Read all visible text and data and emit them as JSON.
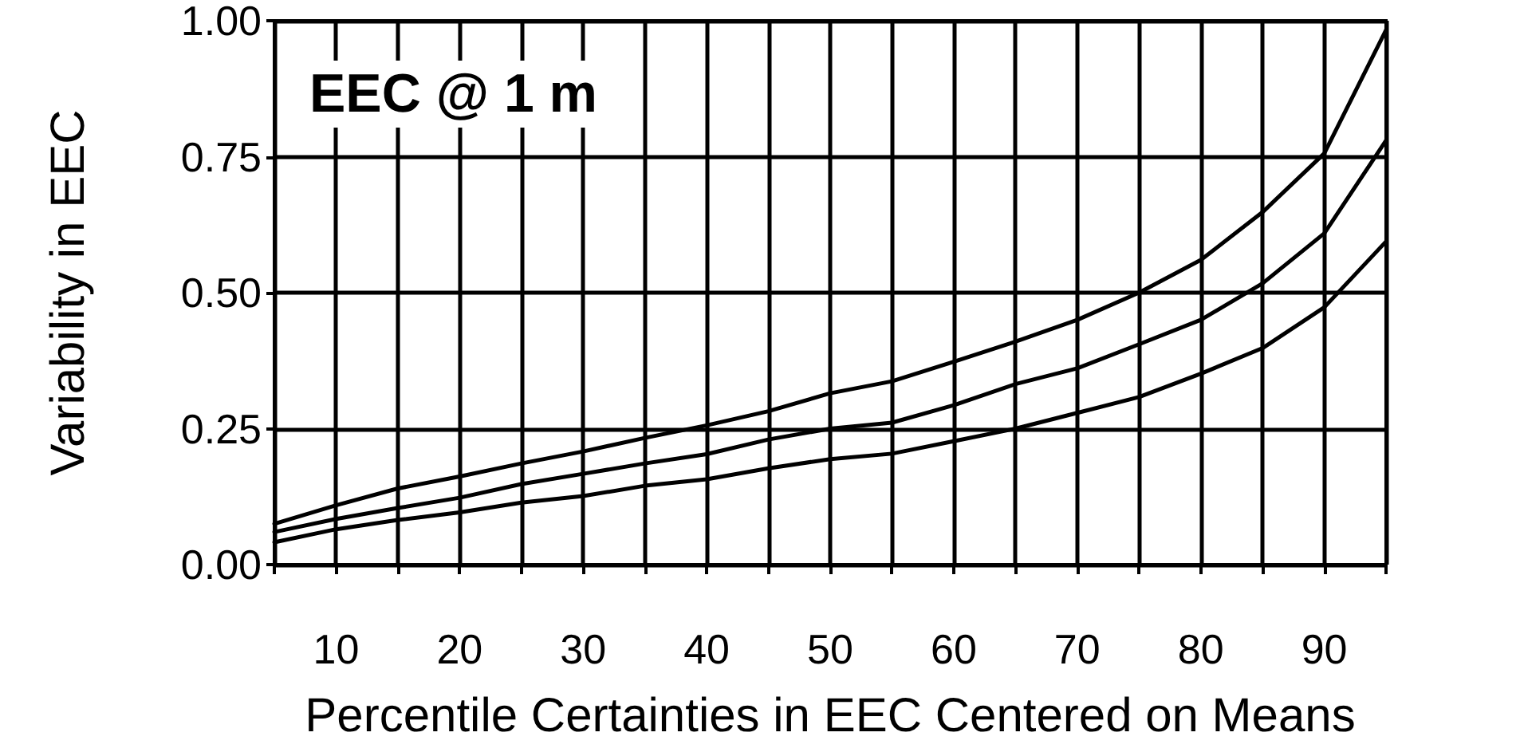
{
  "chart_data": {
    "type": "line",
    "title": "EEC @ 1 m",
    "xlabel": "Percentile Certainties in EEC Centered on Means",
    "ylabel": "Variability in EEC",
    "x": [
      5,
      10,
      15,
      20,
      25,
      30,
      35,
      40,
      45,
      50,
      55,
      60,
      65,
      70,
      75,
      80,
      85,
      90,
      95
    ],
    "series": [
      {
        "color": "#000000",
        "values": [
          0.075,
          0.109,
          0.14,
          0.162,
          0.186,
          0.208,
          0.233,
          0.256,
          0.282,
          0.315,
          0.337,
          0.373,
          0.41,
          0.45,
          0.5,
          0.56,
          0.648,
          0.756,
          0.983
        ]
      },
      {
        "color": "#000000",
        "values": [
          0.06,
          0.084,
          0.104,
          0.123,
          0.148,
          0.167,
          0.186,
          0.203,
          0.23,
          0.25,
          0.261,
          0.293,
          0.332,
          0.361,
          0.405,
          0.45,
          0.517,
          0.609,
          0.78
        ]
      },
      {
        "color": "#000000",
        "values": [
          0.041,
          0.065,
          0.082,
          0.096,
          0.114,
          0.126,
          0.145,
          0.157,
          0.177,
          0.194,
          0.204,
          0.227,
          0.25,
          0.279,
          0.308,
          0.351,
          0.398,
          0.473,
          0.594
        ]
      }
    ],
    "xlim": [
      5,
      95
    ],
    "xticks": [
      {
        "value": 5,
        "label": null
      },
      10,
      {
        "value": 15,
        "label": null
      },
      20,
      {
        "value": 25,
        "label": null
      },
      30,
      {
        "value": 35,
        "label": null
      },
      40,
      {
        "value": 45,
        "label": null
      },
      50,
      {
        "value": 55,
        "label": null
      },
      60,
      {
        "value": 65,
        "label": null
      },
      70,
      {
        "value": 75,
        "label": null
      },
      80,
      {
        "value": 85,
        "label": null
      },
      90,
      {
        "value": 95,
        "label": null
      }
    ],
    "ylim": [
      0,
      1
    ],
    "yticks": [
      {
        "value": 0,
        "label": "0.00"
      },
      {
        "value": 0.25,
        "label": "0.25"
      },
      {
        "value": 0.5,
        "label": "0.50"
      },
      {
        "value": 0.75,
        "label": "0.75"
      },
      {
        "value": 1,
        "label": "1.00"
      }
    ],
    "grid": true,
    "marker": "none",
    "line_style": "solid"
  }
}
